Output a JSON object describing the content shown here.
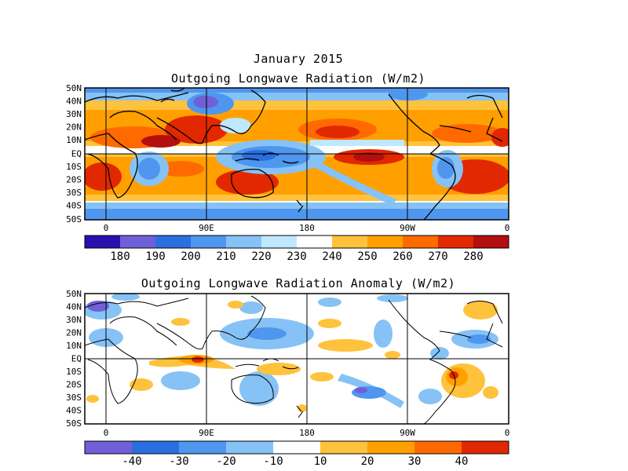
{
  "titles": {
    "main": "January 2015",
    "top": "Outgoing Longwave Radiation (W/m2)",
    "bottom": "Outgoing Longwave Radiation Anomaly (W/m2)"
  },
  "lat_labels": [
    "50N",
    "40N",
    "30N",
    "20N",
    "10N",
    "EQ",
    "10S",
    "20S",
    "30S",
    "40S",
    "50S"
  ],
  "lon_labels": [
    "0",
    "90E",
    "180",
    "90W",
    "0"
  ],
  "top_colorbar": {
    "labels": [
      "180",
      "190",
      "200",
      "210",
      "220",
      "230",
      "240",
      "250",
      "260",
      "270",
      "280"
    ],
    "colors": [
      "#2a0fb0",
      "#7060d8",
      "#2a6fe0",
      "#4f96ee",
      "#86c2f5",
      "#bfe8ff",
      "#ffffff",
      "#ffc23c",
      "#ffa000",
      "#ff6a00",
      "#e22800",
      "#b40f0f"
    ]
  },
  "bottom_colorbar": {
    "labels": [
      "-40",
      "-30",
      "-20",
      "-10",
      "10",
      "20",
      "30",
      "40"
    ],
    "colors": [
      "#7060d8",
      "#2a6fe0",
      "#4f96ee",
      "#86c2f5",
      "#ffffff",
      "#ffc23c",
      "#ffa000",
      "#ff6a00",
      "#e22800"
    ]
  }
}
